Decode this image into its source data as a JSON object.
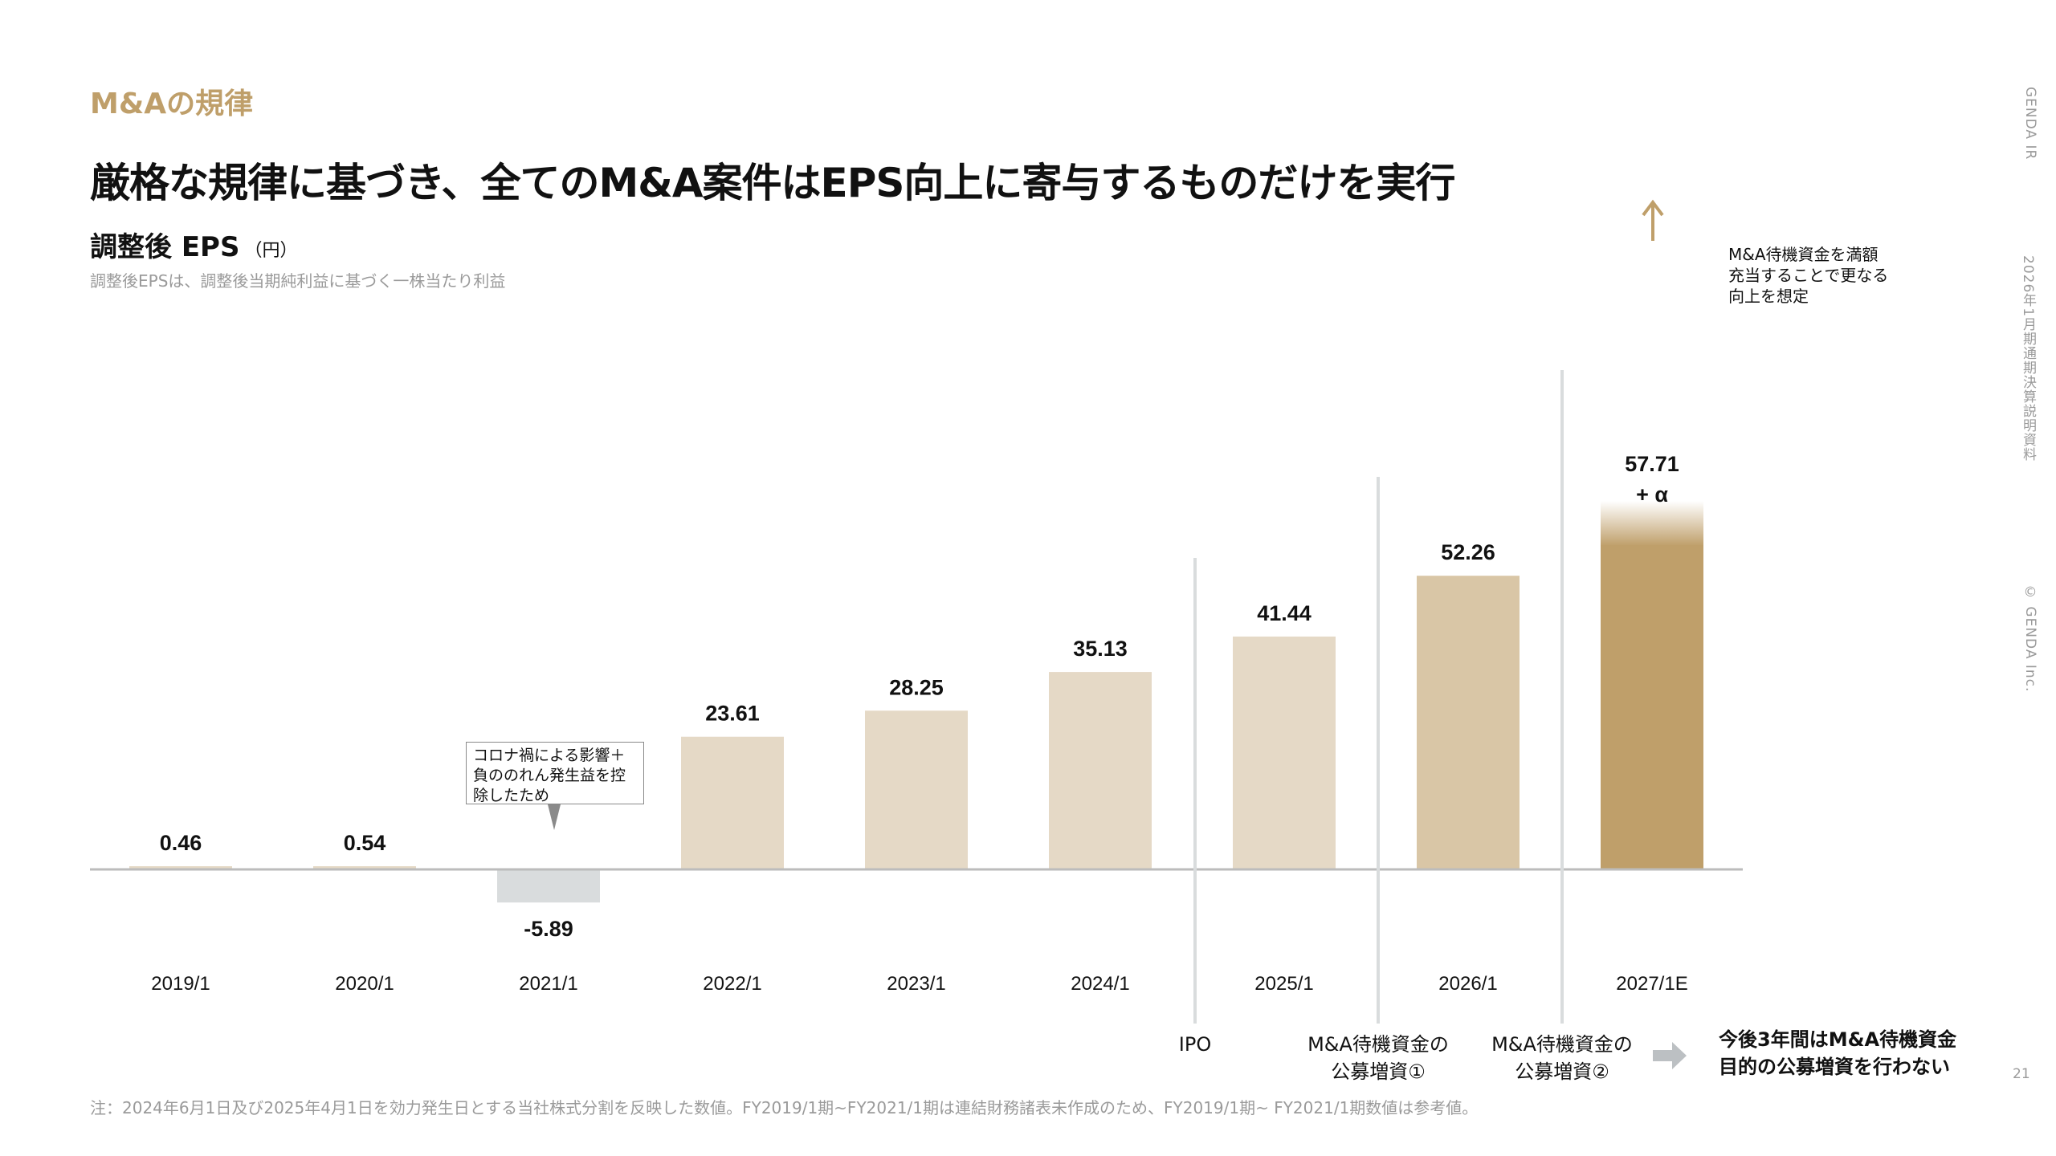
{
  "section_label": "M&Aの規律",
  "headline": "厳格な規律に基づき、全てのM&A案件はEPS向上に寄与するものだけを実行",
  "chart_header": {
    "title": "調整後 EPS",
    "unit": "（円）",
    "note": "調整後EPSは、調整後当期純利益に基づく一株当たり利益"
  },
  "side": {
    "brand": "GENDA IR",
    "doc": "2026年1月期通期決算説明資料",
    "copyright": "© GENDA Inc."
  },
  "page_number": "21",
  "footnote": "注：2024年6月1日及び2025年4月1日を効力発生日とする当社株式分割を反映した数値。FY2019/1期~FY2021/1期は連結財務諸表未作成のため、FY2019/1期~ FY2021/1期数値は参考値。",
  "callout": "コロナ禍による影響＋負ののれん発生益を控除したため",
  "annotation_right": "M&A待機資金を満額充当することで更なる向上を想定",
  "events": {
    "ipo": "IPO",
    "offering1": "M&A待機資金の\n公募増資①",
    "offering2": "M&A待機資金の\n公募増資②"
  },
  "future_note": "今後3年間はM&A待機資金\n目的の公募増資を行わない",
  "colors": {
    "accent": "#bf9f6a",
    "bar_light": "#e5d9c6",
    "bar_mid": "#d9c6a6",
    "bar_dark": "#bf9f6a",
    "bar_negative": "#d9dcdd",
    "axis": "#bcbcbc"
  },
  "chart_data": {
    "type": "bar",
    "title": "調整後 EPS",
    "ylabel": "円",
    "categories": [
      "2019/1",
      "2020/1",
      "2021/1",
      "2022/1",
      "2023/1",
      "2024/1",
      "2025/1",
      "2026/1",
      "2027/1E"
    ],
    "values": [
      0.46,
      0.54,
      -5.89,
      23.61,
      28.25,
      35.13,
      41.44,
      52.26,
      57.71
    ],
    "labels": [
      "0.46",
      "0.54",
      "-5.89",
      "23.61",
      "28.25",
      "35.13",
      "41.44",
      "52.26",
      "57.71\n+ α"
    ],
    "ylim": [
      -10,
      60
    ],
    "grid": false,
    "legend": "none"
  }
}
